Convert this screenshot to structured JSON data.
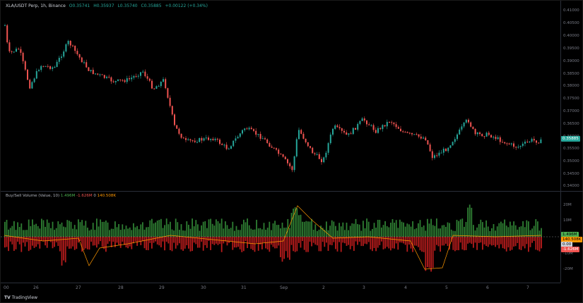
{
  "legend": {
    "symbol": "XLA/USDT Perp, 1h, Binance",
    "open": "O0.35741",
    "high": "H0.35937",
    "low": "L0.35740",
    "close": "C0.35885",
    "change": "+0.00122 (+0.34%)"
  },
  "volume_legend": {
    "name": "Buy/Sell Volume (Value, 10)",
    "buy": "1.496M",
    "sell": "-1.626M",
    "zero": "0",
    "ma": "140.508K"
  },
  "price_axis": [
    "0.41000",
    "0.40500",
    "0.40000",
    "0.39500",
    "0.39000",
    "0.38500",
    "0.38000",
    "0.37500",
    "0.37000",
    "0.36500",
    "0.36000",
    "0.35500",
    "0.35000",
    "0.34500",
    "0.34000"
  ],
  "volume_axis": [
    "20M",
    "10M",
    "-10M",
    "-20M"
  ],
  "time_axis": [
    "00",
    "26",
    "27",
    "28",
    "29",
    "30",
    "31",
    "Sep",
    "2",
    "3",
    "4",
    "5",
    "6",
    "7"
  ],
  "badges": {
    "price": "0.35885",
    "buy": "1.496M",
    "ma": "140.508K",
    "zero": "0.00",
    "sell": "-1.626M"
  },
  "footer": {
    "brand": "TradingView"
  },
  "colors": {
    "up": "#26a69a",
    "down": "#ef5350",
    "buy": "#2e7d32",
    "sell": "#b71c1c",
    "ma": "#ff9800"
  }
}
